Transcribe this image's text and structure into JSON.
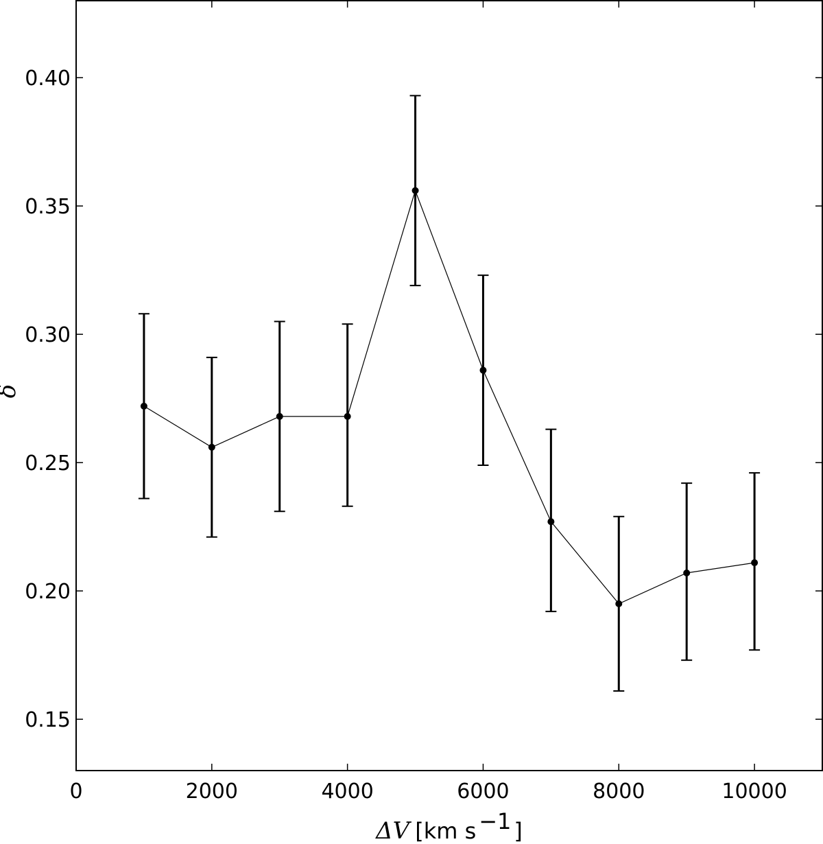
{
  "chart_data": {
    "type": "line",
    "title": "",
    "xlabel": {
      "symbol": "ΔV",
      "unit_open": "[km s",
      "unit_exp": "−1",
      "unit_close": "]"
    },
    "ylabel": "δ",
    "xlim": [
      0,
      11000
    ],
    "ylim": [
      0.13,
      0.43
    ],
    "xticks": [
      0,
      2000,
      4000,
      6000,
      8000,
      10000
    ],
    "xtick_labels": [
      "0",
      "2000",
      "4000",
      "6000",
      "8000",
      "10000"
    ],
    "yticks": [
      0.15,
      0.2,
      0.25,
      0.3,
      0.35,
      0.4
    ],
    "ytick_labels": [
      "0.15",
      "0.20",
      "0.25",
      "0.30",
      "0.35",
      "0.40"
    ],
    "grid": false,
    "legend": "none",
    "colors": {
      "series": "#000000"
    },
    "series": [
      {
        "x": [
          1000,
          2000,
          3000,
          4000,
          5000,
          6000,
          7000,
          8000,
          9000,
          10000
        ],
        "y": [
          0.272,
          0.256,
          0.268,
          0.268,
          0.356,
          0.286,
          0.227,
          0.195,
          0.207,
          0.211
        ],
        "yerr_low": [
          0.236,
          0.221,
          0.231,
          0.233,
          0.319,
          0.249,
          0.192,
          0.161,
          0.173,
          0.177
        ],
        "yerr_high": [
          0.308,
          0.291,
          0.305,
          0.304,
          0.393,
          0.323,
          0.263,
          0.229,
          0.242,
          0.246
        ]
      }
    ]
  }
}
